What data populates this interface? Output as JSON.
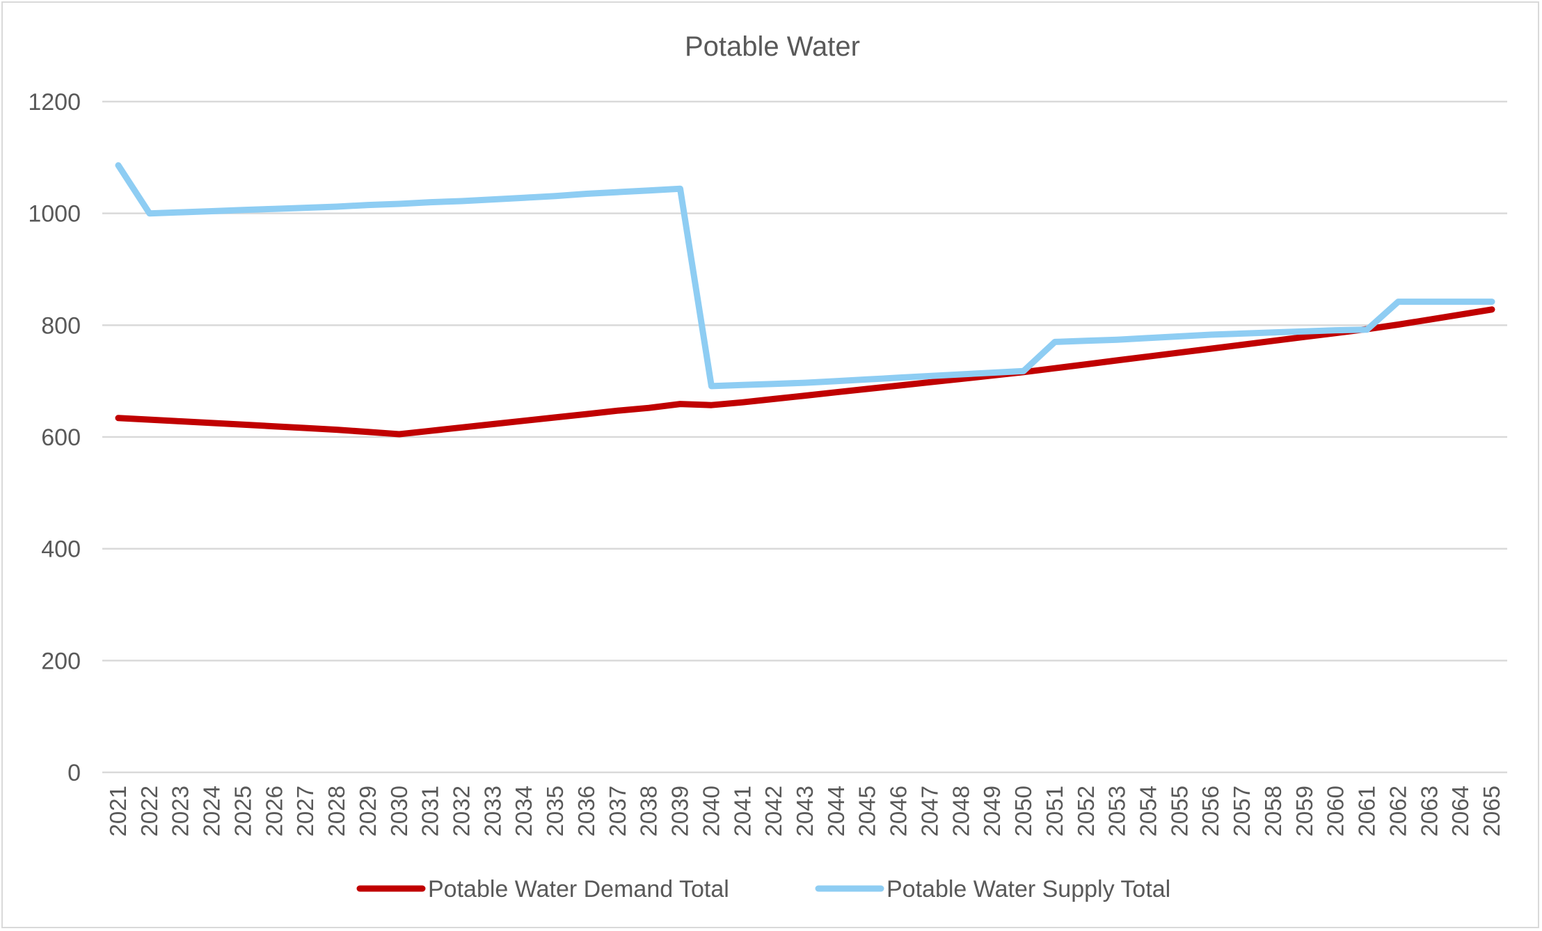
{
  "chart_data": {
    "type": "line",
    "title": "Potable Water",
    "xlabel": "",
    "ylabel": "",
    "ylim": [
      0,
      1200
    ],
    "yticks": [
      0,
      200,
      400,
      600,
      800,
      1000,
      1200
    ],
    "grid": true,
    "legend_position": "bottom",
    "x": [
      "2021",
      "2022",
      "2023",
      "2024",
      "2025",
      "2026",
      "2027",
      "2028",
      "2029",
      "2030",
      "2031",
      "2032",
      "2033",
      "2034",
      "2035",
      "2036",
      "2037",
      "2038",
      "2039",
      "2040",
      "2041",
      "2042",
      "2043",
      "2044",
      "2045",
      "2046",
      "2047",
      "2048",
      "2049",
      "2050",
      "2051",
      "2052",
      "2053",
      "2054",
      "2055",
      "2056",
      "2057",
      "2058",
      "2059",
      "2060",
      "2061",
      "2062",
      "2063",
      "2064",
      "2065"
    ],
    "series": [
      {
        "name": "Potable Water Demand Total",
        "color": "#c00000",
        "values": [
          634,
          631,
          628,
          625,
          622,
          619,
          616,
          613,
          609,
          605,
          611,
          617,
          623,
          629,
          635,
          641,
          647,
          652,
          659,
          657,
          662,
          668,
          674,
          680,
          686,
          692,
          698,
          704,
          710,
          716,
          723,
          730,
          737,
          744,
          751,
          758,
          765,
          772,
          779,
          786,
          793,
          801,
          810,
          819,
          828
        ]
      },
      {
        "name": "Potable Water Supply Total",
        "color": "#8ecdf3",
        "values": [
          1086,
          1000,
          1002,
          1004,
          1006,
          1008,
          1010,
          1012,
          1015,
          1017,
          1020,
          1022,
          1025,
          1028,
          1031,
          1035,
          1038,
          1041,
          1044,
          691,
          693,
          695,
          697,
          700,
          703,
          706,
          709,
          712,
          715,
          718,
          770,
          772,
          774,
          777,
          780,
          783,
          785,
          787,
          789,
          791,
          792,
          842,
          842,
          842,
          842
        ]
      }
    ]
  }
}
